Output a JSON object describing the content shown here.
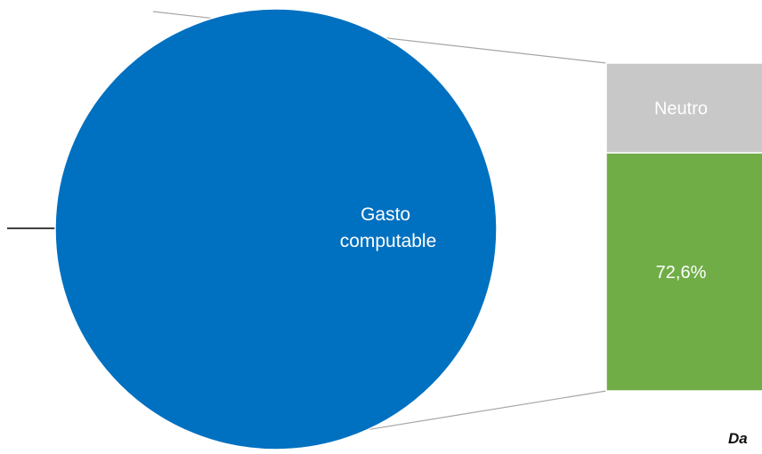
{
  "chart_data": {
    "type": "pie",
    "title": "",
    "pie": {
      "slices": [
        {
          "label_lines": [
            "Gasto",
            "computable"
          ],
          "value": null,
          "color": "#0070C0"
        }
      ]
    },
    "breakdown": {
      "segments": [
        {
          "label": "Neutro",
          "value": 27.4,
          "color": "#C8C8C8",
          "text_color": "#FFFFFF"
        },
        {
          "label": "72,6%",
          "value": 72.6,
          "color": "#70AD47",
          "text_color": "#FFFFFF"
        }
      ]
    }
  },
  "source_note": "Da"
}
